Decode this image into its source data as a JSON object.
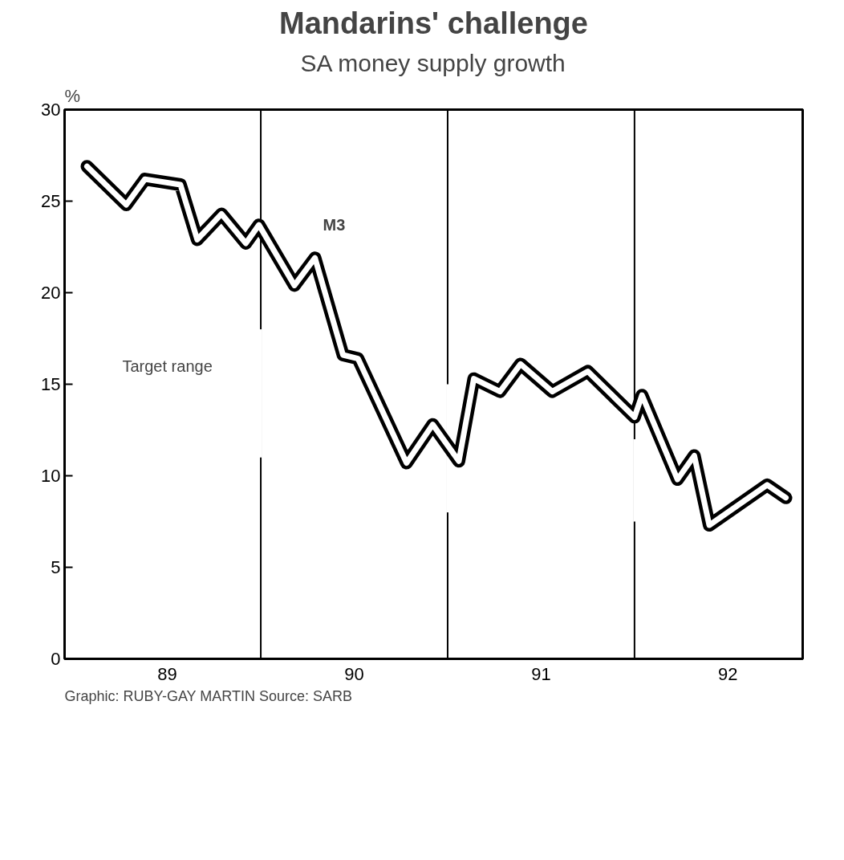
{
  "chart_data": {
    "type": "line",
    "title": "Mandarins' challenge",
    "subtitle": "SA money supply growth",
    "ylabel": "%",
    "xlim": [
      88.45,
      92.4
    ],
    "ylim": [
      0,
      30
    ],
    "xticks": [
      89,
      90,
      91,
      92
    ],
    "yticks": [
      0,
      5,
      10,
      15,
      20,
      25,
      30
    ],
    "grid": false,
    "marker": "none",
    "line_style": "solid",
    "ref_lines": [
      {
        "axis": "x",
        "value": 89.5,
        "color": "#000000"
      },
      {
        "axis": "x",
        "value": 90.5,
        "color": "#000000"
      },
      {
        "axis": "x",
        "value": 91.5,
        "color": "#000000"
      }
    ],
    "series": [
      {
        "name": "M3",
        "color": "#000000",
        "x": [
          88.57,
          88.78,
          88.88,
          89.07,
          89.16,
          89.29,
          89.42,
          89.49,
          89.68,
          89.79,
          89.94,
          90.02,
          90.28,
          90.42,
          90.56,
          90.64,
          90.78,
          90.89,
          91.06,
          91.25,
          91.5,
          91.54,
          91.73,
          91.82,
          91.9,
          92.21,
          92.31
        ],
        "values": [
          26.9,
          24.8,
          26.2,
          25.9,
          22.9,
          24.3,
          22.7,
          23.7,
          20.4,
          21.9,
          16.6,
          16.4,
          10.7,
          12.8,
          10.8,
          15.3,
          14.6,
          16.1,
          14.6,
          15.7,
          13.2,
          14.4,
          9.8,
          11.1,
          7.3,
          9.5,
          8.8
        ]
      },
      {
        "name": "Target range",
        "type": "bar",
        "color": "#ffffff",
        "x": [
          89.5,
          90.5,
          91.5
        ],
        "base": [
          11,
          8,
          7.5
        ],
        "values": [
          7,
          7,
          4.5
        ]
      }
    ],
    "annotations": [
      "Graphic: RUBY-GAY MARTIN  Source: SARB"
    ]
  }
}
